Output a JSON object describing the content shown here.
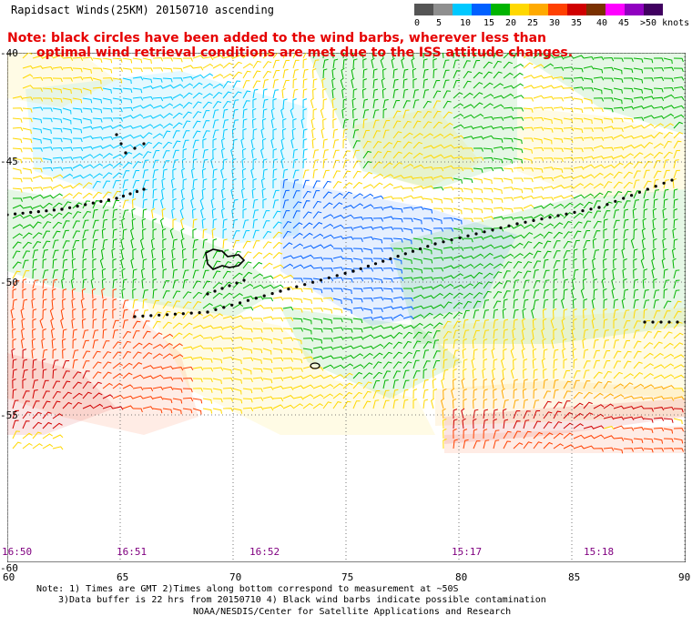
{
  "title": "Rapidsact Winds(25KM) 20150710 ascending",
  "legend": {
    "labels": [
      "0",
      "5",
      "10",
      "15",
      "20",
      "25",
      "30",
      "35",
      "40",
      "45",
      ">50 knots"
    ],
    "colors": [
      "#555555",
      "#8f8f8f",
      "#00c8ff",
      "#0060ff",
      "#00b400",
      "#ffd800",
      "#ffaa00",
      "#ff4000",
      "#d00000",
      "#7a3000",
      "#ff00ff",
      "#9000c0",
      "#400060"
    ]
  },
  "note": {
    "line1": "Note: black circles have been added to the wind barbs, wherever less than",
    "line2": "optimal wind retrieval conditions are met due to the ISS attitude changes."
  },
  "axes": {
    "lat_labels": [
      "-40",
      "-45",
      "-50",
      "-55",
      "-60"
    ],
    "lon_labels": [
      "60",
      "65",
      "70",
      "75",
      "80",
      "85",
      "90"
    ]
  },
  "times": [
    "16:50",
    "16:51",
    "16:52",
    "15:17",
    "15:18"
  ],
  "footer": {
    "line1": "Note: 1) Times are GMT 2)Times along bottom correspond to measurement at ~50S",
    "line2": "3)Data buffer is 22 hrs from 20150710 4) Black wind barbs indicate possible contamination",
    "line3": "NOAA/NESDIS/Center for Satellite Applications and Research"
  }
}
